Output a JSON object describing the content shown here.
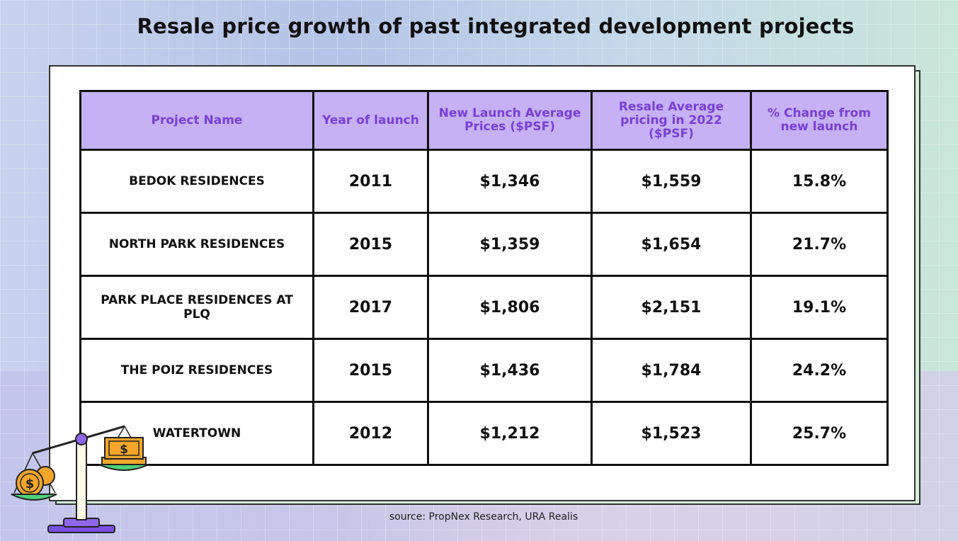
{
  "title": "Resale price growth of past integrated development projects",
  "source": "source: PropNex Research, URA Realis",
  "table": {
    "headers": [
      "Project Name",
      "Year of launch",
      "New Launch Average Prices ($PSF)",
      "Resale Average pricing in 2022 ($PSF)",
      "% Change from new launch"
    ],
    "rows": [
      {
        "name": "BEDOK RESIDENCES",
        "year": "2011",
        "launch": "$1,346",
        "resale": "$1,559",
        "change": "15.8%"
      },
      {
        "name": "NORTH PARK RESIDENCES",
        "year": "2015",
        "launch": "$1,359",
        "resale": "$1,654",
        "change": "21.7%"
      },
      {
        "name": "PARK PLACE RESIDENCES AT PLQ",
        "year": "2017",
        "launch": "$1,806",
        "resale": "$2,151",
        "change": "19.1%"
      },
      {
        "name": "THE POIZ RESIDENCES",
        "year": "2015",
        "launch": "$1,436",
        "resale": "$1,784",
        "change": "24.2%"
      },
      {
        "name": "WATERTOWN",
        "year": "2012",
        "launch": "$1,212",
        "resale": "$1,523",
        "change": "25.7%"
      }
    ]
  },
  "illustration": {
    "icon": "balance-scale-money-icon",
    "coin_symbol": "$",
    "bill_symbol": "$"
  }
}
